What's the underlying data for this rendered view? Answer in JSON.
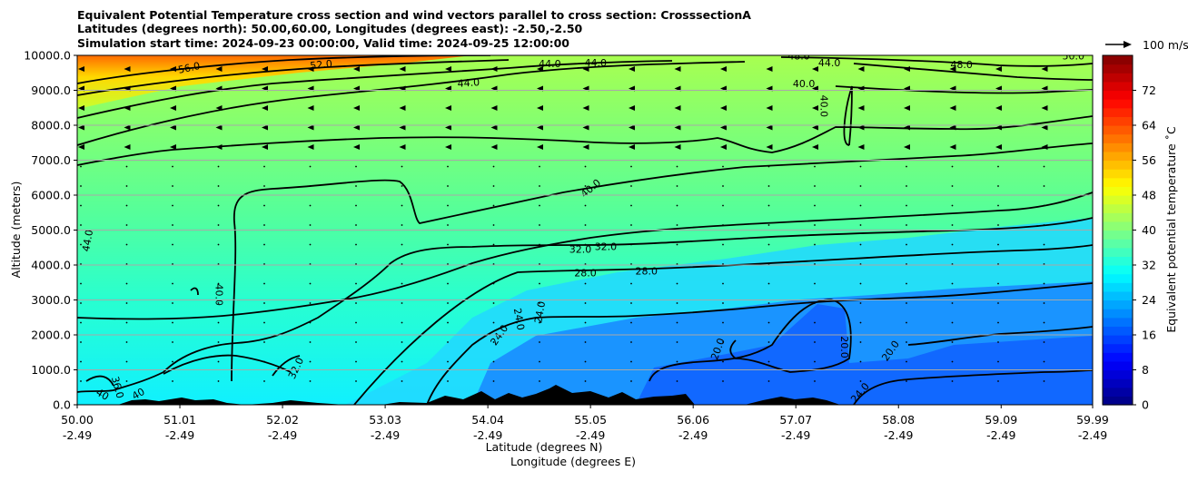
{
  "chart_data": {
    "type": "heatmap",
    "subtype": "filled-contour cross section with wind vectors",
    "title_lines": [
      "Equivalent Potential Temperature cross section and wind vectors parallel to cross section: CrosssectionA",
      "Latitudes (degrees north): 50.00,60.00, Longitudes (degrees east): -2.50,-2.50",
      "Simulation start time: 2024-09-23 00:00:00, Valid time: 2024-09-25 12:00:00"
    ],
    "xlabel": "Latitude (degrees N)",
    "xlabel2": "Longitude (degrees E)",
    "ylabel": "Altitude (meters)",
    "xlim": [
      50.0,
      59.99
    ],
    "ylim": [
      0,
      10000
    ],
    "x_ticks": [
      {
        "lat": "50.00",
        "lon": "-2.49",
        "value": 50.0
      },
      {
        "lat": "51.01",
        "lon": "-2.49",
        "value": 51.01
      },
      {
        "lat": "52.02",
        "lon": "-2.49",
        "value": 52.02
      },
      {
        "lat": "53.03",
        "lon": "-2.49",
        "value": 53.03
      },
      {
        "lat": "54.04",
        "lon": "-2.49",
        "value": 54.04
      },
      {
        "lat": "55.05",
        "lon": "-2.49",
        "value": 55.05
      },
      {
        "lat": "56.06",
        "lon": "-2.49",
        "value": 56.06
      },
      {
        "lat": "57.07",
        "lon": "-2.49",
        "value": 57.07
      },
      {
        "lat": "58.08",
        "lon": "-2.49",
        "value": 58.08
      },
      {
        "lat": "59.09",
        "lon": "-2.49",
        "value": 59.09
      },
      {
        "lat": "59.99",
        "lon": "-2.49",
        "value": 59.99
      }
    ],
    "y_ticks": [
      {
        "label": "0.0",
        "value": 0
      },
      {
        "label": "1000.0",
        "value": 1000
      },
      {
        "label": "2000.0",
        "value": 2000
      },
      {
        "label": "3000.0",
        "value": 3000
      },
      {
        "label": "4000.0",
        "value": 4000
      },
      {
        "label": "5000.0",
        "value": 5000
      },
      {
        "label": "6000.0",
        "value": 6000
      },
      {
        "label": "7000.0",
        "value": 7000
      },
      {
        "label": "8000.0",
        "value": 8000
      },
      {
        "label": "9000.0",
        "value": 9000
      },
      {
        "label": "10000.0",
        "value": 10000
      }
    ],
    "grid": "horizontal",
    "colorbar": {
      "label": "Equivalent potential temperature ˚C",
      "min": 0,
      "max": 80,
      "step": 2,
      "ticks": [
        "0",
        "8",
        "16",
        "24",
        "32",
        "40",
        "48",
        "56",
        "64",
        "72"
      ],
      "colors": [
        "#00007f",
        "#0000bf",
        "#0000ff",
        "#0040ff",
        "#0080ff",
        "#00bfff",
        "#00ffff",
        "#40ffbf",
        "#80ff80",
        "#bfff40",
        "#ffff00",
        "#ffbf00",
        "#ff8000",
        "#ff4000",
        "#ff0000",
        "#bf0000",
        "#7f0000"
      ]
    },
    "quiver_key": {
      "label": "100 m/s"
    },
    "contour_labels": [
      {
        "text": "56.0",
        "x": 51.1,
        "y": 9650,
        "angle": -12
      },
      {
        "text": "52.0",
        "x": 52.4,
        "y": 9740,
        "angle": -6
      },
      {
        "text": "44.0",
        "x": 54.65,
        "y": 9760,
        "angle": 0
      },
      {
        "text": "44.0",
        "x": 55.1,
        "y": 9790,
        "angle": 0
      },
      {
        "text": "44.0",
        "x": 53.85,
        "y": 9220,
        "angle": -4
      },
      {
        "text": "48.0",
        "x": 57.1,
        "y": 9990,
        "angle": 0
      },
      {
        "text": "44.0",
        "x": 57.4,
        "y": 9790,
        "angle": 0
      },
      {
        "text": "48.0",
        "x": 58.7,
        "y": 9740,
        "angle": 0
      },
      {
        "text": "50.0",
        "x": 59.8,
        "y": 9990,
        "angle": 0
      },
      {
        "text": "40.0",
        "x": 57.15,
        "y": 9200,
        "angle": 0
      },
      {
        "text": "40.0",
        "x": 57.35,
        "y": 8550,
        "angle": 90
      },
      {
        "text": "40.0",
        "x": 55.05,
        "y": 6200,
        "angle": -40
      },
      {
        "text": "44.0",
        "x": 50.1,
        "y": 4700,
        "angle": -80
      },
      {
        "text": "40.0",
        "x": 51.4,
        "y": 3150,
        "angle": 90
      },
      {
        "text": "32.0",
        "x": 54.95,
        "y": 4450,
        "angle": 0
      },
      {
        "text": "32.0",
        "x": 55.2,
        "y": 4530,
        "angle": 0
      },
      {
        "text": "28.0",
        "x": 55.0,
        "y": 3780,
        "angle": 0
      },
      {
        "text": "28.0",
        "x": 55.6,
        "y": 3830,
        "angle": 0
      },
      {
        "text": "24.0",
        "x": 54.15,
        "y": 2000,
        "angle": -55
      },
      {
        "text": "24.0",
        "x": 54.35,
        "y": 2450,
        "angle": 80
      },
      {
        "text": "24.0",
        "x": 54.55,
        "y": 2650,
        "angle": -80
      },
      {
        "text": "20.0",
        "x": 56.3,
        "y": 1600,
        "angle": -70
      },
      {
        "text": "20.0",
        "x": 57.55,
        "y": 1650,
        "angle": 90
      },
      {
        "text": "20.0",
        "x": 58.0,
        "y": 1550,
        "angle": -55
      },
      {
        "text": "24.0",
        "x": 57.7,
        "y": 350,
        "angle": -50
      },
      {
        "text": "32.0",
        "x": 52.15,
        "y": 1050,
        "angle": -65
      },
      {
        "text": "36.0",
        "x": 50.4,
        "y": 500,
        "angle": 75
      },
      {
        "text": "40",
        "x": 50.25,
        "y": 300,
        "angle": 30
      },
      {
        "text": "40",
        "x": 50.6,
        "y": 320,
        "angle": -30
      }
    ]
  }
}
